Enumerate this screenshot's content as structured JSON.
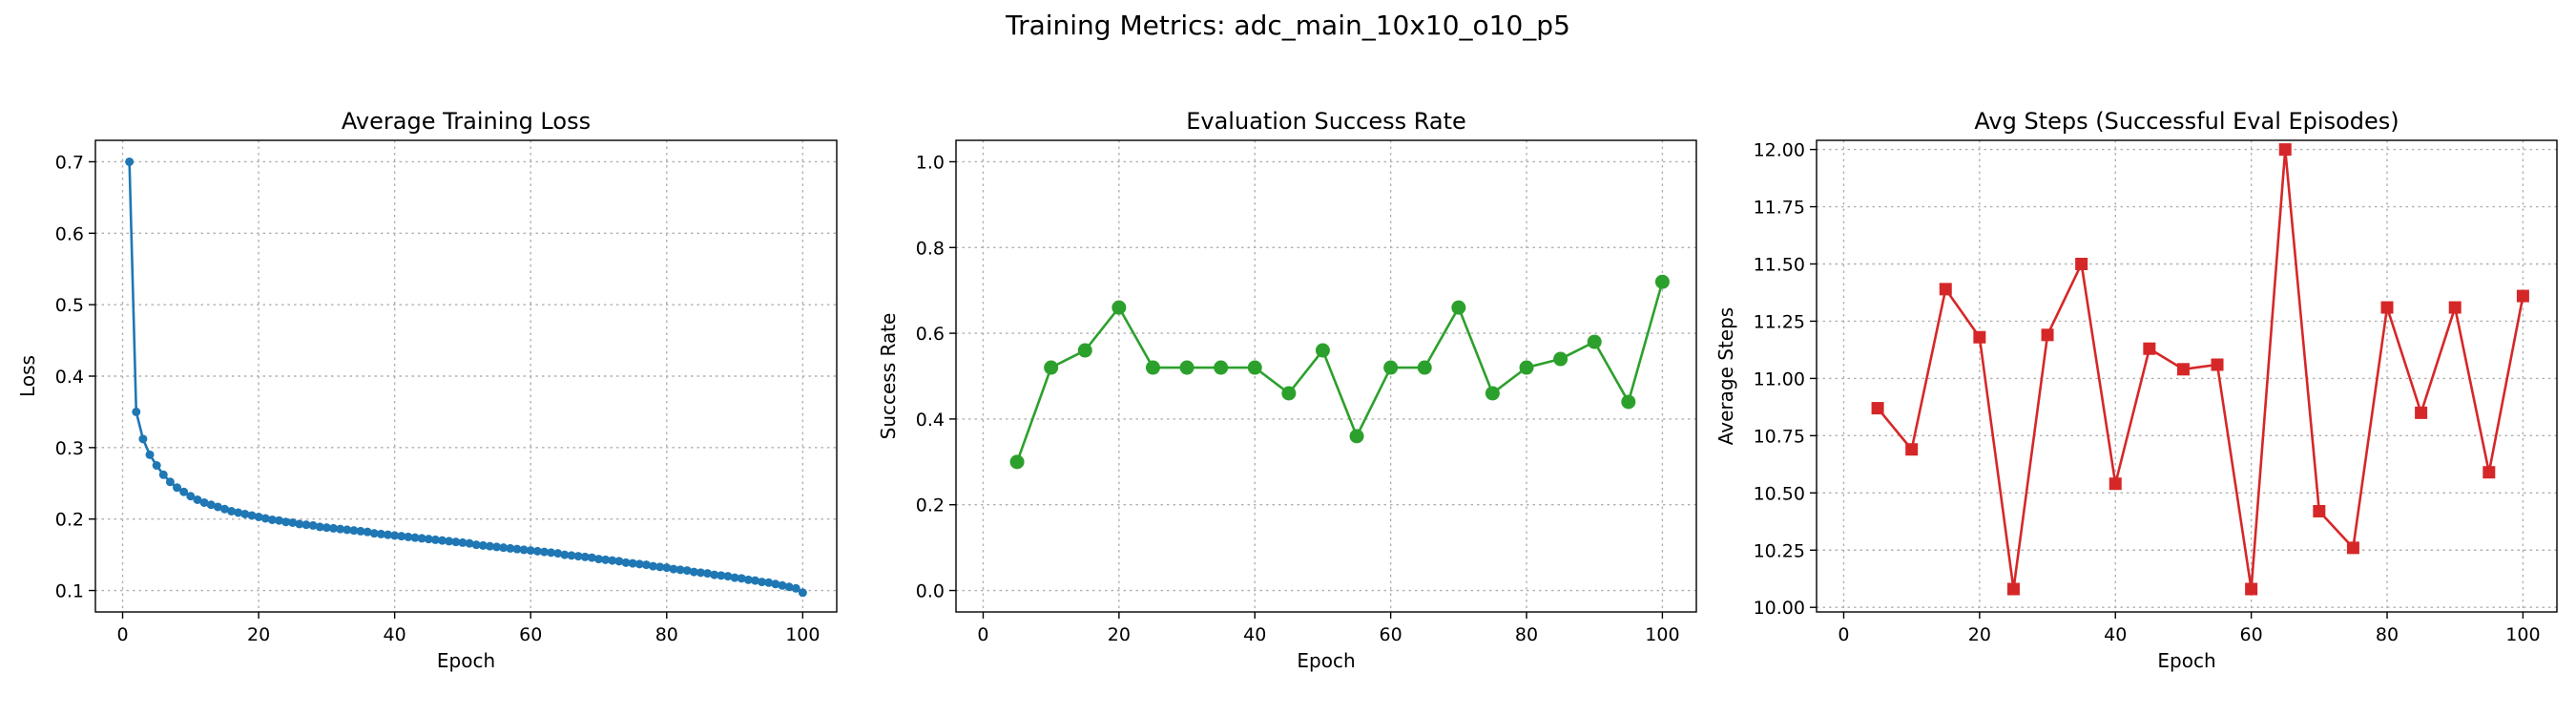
{
  "suptitle": "Training Metrics: adc_main_10x10_o10_p5",
  "chart_data": [
    {
      "type": "line",
      "title": "Average Training Loss",
      "xlabel": "Epoch",
      "ylabel": "Loss",
      "color": "#1f77b4",
      "marker": "circle",
      "grid": true,
      "xlim": [
        -4,
        105
      ],
      "ylim": [
        0.07,
        0.73
      ],
      "xticks": [
        0,
        20,
        40,
        60,
        80,
        100
      ],
      "yticks": [
        0.1,
        0.2,
        0.3,
        0.4,
        0.5,
        0.6,
        0.7
      ],
      "ytick_labels": [
        "0.1",
        "0.2",
        "0.3",
        "0.4",
        "0.5",
        "0.6",
        "0.7"
      ],
      "x": [
        1,
        2,
        3,
        4,
        5,
        6,
        7,
        8,
        9,
        10,
        11,
        12,
        13,
        14,
        15,
        16,
        17,
        18,
        19,
        20,
        21,
        22,
        23,
        24,
        25,
        26,
        27,
        28,
        29,
        30,
        31,
        32,
        33,
        34,
        35,
        36,
        37,
        38,
        39,
        40,
        41,
        42,
        43,
        44,
        45,
        46,
        47,
        48,
        49,
        50,
        51,
        52,
        53,
        54,
        55,
        56,
        57,
        58,
        59,
        60,
        61,
        62,
        63,
        64,
        65,
        66,
        67,
        68,
        69,
        70,
        71,
        72,
        73,
        74,
        75,
        76,
        77,
        78,
        79,
        80,
        81,
        82,
        83,
        84,
        85,
        86,
        87,
        88,
        89,
        90,
        91,
        92,
        93,
        94,
        95,
        96,
        97,
        98,
        99,
        100
      ],
      "y": [
        0.7,
        0.35,
        0.312,
        0.29,
        0.275,
        0.262,
        0.252,
        0.244,
        0.238,
        0.232,
        0.227,
        0.223,
        0.22,
        0.217,
        0.214,
        0.211,
        0.209,
        0.207,
        0.205,
        0.203,
        0.201,
        0.199,
        0.198,
        0.196,
        0.195,
        0.193,
        0.192,
        0.191,
        0.189,
        0.188,
        0.187,
        0.186,
        0.185,
        0.184,
        0.183,
        0.182,
        0.18,
        0.179,
        0.178,
        0.177,
        0.176,
        0.175,
        0.174,
        0.173,
        0.172,
        0.171,
        0.17,
        0.169,
        0.168,
        0.167,
        0.166,
        0.164,
        0.163,
        0.162,
        0.161,
        0.16,
        0.159,
        0.158,
        0.157,
        0.156,
        0.155,
        0.154,
        0.153,
        0.152,
        0.15,
        0.149,
        0.148,
        0.147,
        0.146,
        0.144,
        0.143,
        0.142,
        0.141,
        0.139,
        0.138,
        0.137,
        0.136,
        0.134,
        0.133,
        0.132,
        0.13,
        0.129,
        0.128,
        0.126,
        0.125,
        0.124,
        0.122,
        0.121,
        0.12,
        0.118,
        0.117,
        0.115,
        0.114,
        0.112,
        0.111,
        0.109,
        0.107,
        0.105,
        0.103,
        0.097
      ]
    },
    {
      "type": "line",
      "title": "Evaluation Success Rate",
      "xlabel": "Epoch",
      "ylabel": "Success Rate",
      "color": "#2ca02c",
      "marker": "circle",
      "grid": true,
      "xlim": [
        -4,
        105
      ],
      "ylim": [
        -0.05,
        1.05
      ],
      "xticks": [
        0,
        20,
        40,
        60,
        80,
        100
      ],
      "yticks": [
        0.0,
        0.2,
        0.4,
        0.6,
        0.8,
        1.0
      ],
      "ytick_labels": [
        "0.0",
        "0.2",
        "0.4",
        "0.6",
        "0.8",
        "1.0"
      ],
      "x": [
        5,
        10,
        15,
        20,
        25,
        30,
        35,
        40,
        45,
        50,
        55,
        60,
        65,
        70,
        75,
        80,
        85,
        90,
        95,
        100
      ],
      "y": [
        0.3,
        0.52,
        0.56,
        0.66,
        0.52,
        0.52,
        0.52,
        0.52,
        0.46,
        0.56,
        0.36,
        0.52,
        0.52,
        0.66,
        0.46,
        0.52,
        0.54,
        0.58,
        0.44,
        0.72
      ]
    },
    {
      "type": "line",
      "title": "Avg Steps (Successful Eval Episodes)",
      "xlabel": "Epoch",
      "ylabel": "Average Steps",
      "color": "#d62728",
      "marker": "square",
      "grid": true,
      "xlim": [
        -4,
        105
      ],
      "ylim": [
        9.98,
        12.04
      ],
      "xticks": [
        0,
        20,
        40,
        60,
        80,
        100
      ],
      "yticks": [
        10.0,
        10.25,
        10.5,
        10.75,
        11.0,
        11.25,
        11.5,
        11.75,
        12.0
      ],
      "ytick_labels": [
        "10.00",
        "10.25",
        "10.50",
        "10.75",
        "11.00",
        "11.25",
        "11.50",
        "11.75",
        "12.00"
      ],
      "x": [
        5,
        10,
        15,
        20,
        25,
        30,
        35,
        40,
        45,
        50,
        55,
        60,
        65,
        70,
        75,
        80,
        85,
        90,
        95,
        100
      ],
      "y": [
        10.87,
        10.69,
        11.39,
        11.18,
        10.08,
        11.19,
        11.5,
        10.54,
        11.13,
        11.04,
        11.06,
        10.08,
        12.0,
        10.42,
        10.26,
        11.31,
        10.85,
        11.31,
        10.59,
        11.36
      ]
    }
  ]
}
